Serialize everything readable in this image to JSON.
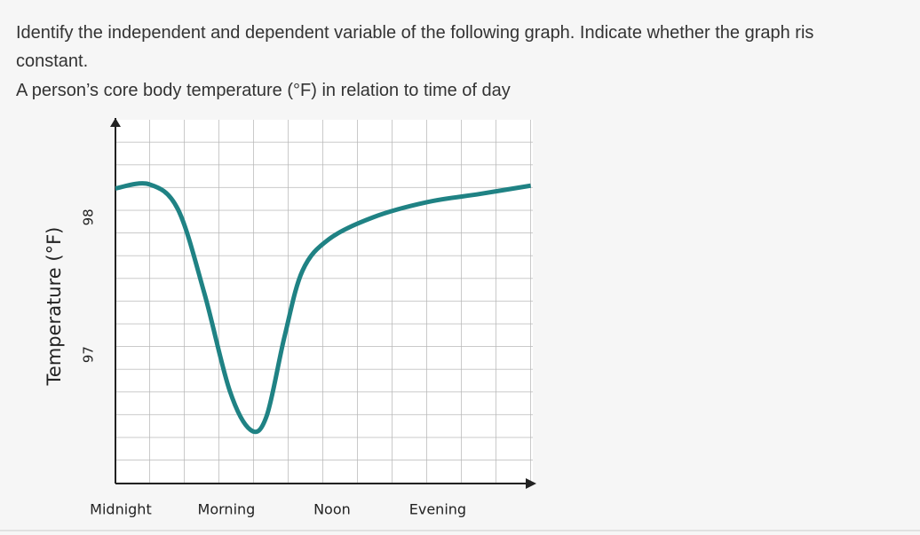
{
  "question": {
    "line1": "Identify the independent and dependent variable of the following graph. Indicate whether the graph ris",
    "line2": "constant.",
    "prompt": "A person’s core body temperature (°F) in relation to time of day"
  },
  "chart_data": {
    "type": "line",
    "y_label": "Temperature (°F)",
    "x": [
      -0.05,
      0.27,
      0.54,
      0.79,
      1.03,
      1.23,
      1.38,
      1.55,
      1.72,
      1.97,
      2.39,
      2.9,
      3.4,
      3.88
    ],
    "series": [
      {
        "color": "#1f8284",
        "values": [
          98.21,
          98.24,
          98.06,
          97.45,
          96.74,
          96.45,
          96.55,
          97.13,
          97.61,
          97.84,
          98.0,
          98.11,
          98.17,
          98.23
        ]
      }
    ],
    "xlim": [
      -0.05,
      3.9
    ],
    "xticks": [
      {
        "value": 0,
        "label": "Midnight"
      },
      {
        "value": 1,
        "label": "Morning"
      },
      {
        "value": 2,
        "label": "Noon"
      },
      {
        "value": 3,
        "label": "Evening"
      }
    ],
    "ylim": [
      96.06,
      98.71
    ],
    "yticks": [
      97,
      98
    ]
  }
}
